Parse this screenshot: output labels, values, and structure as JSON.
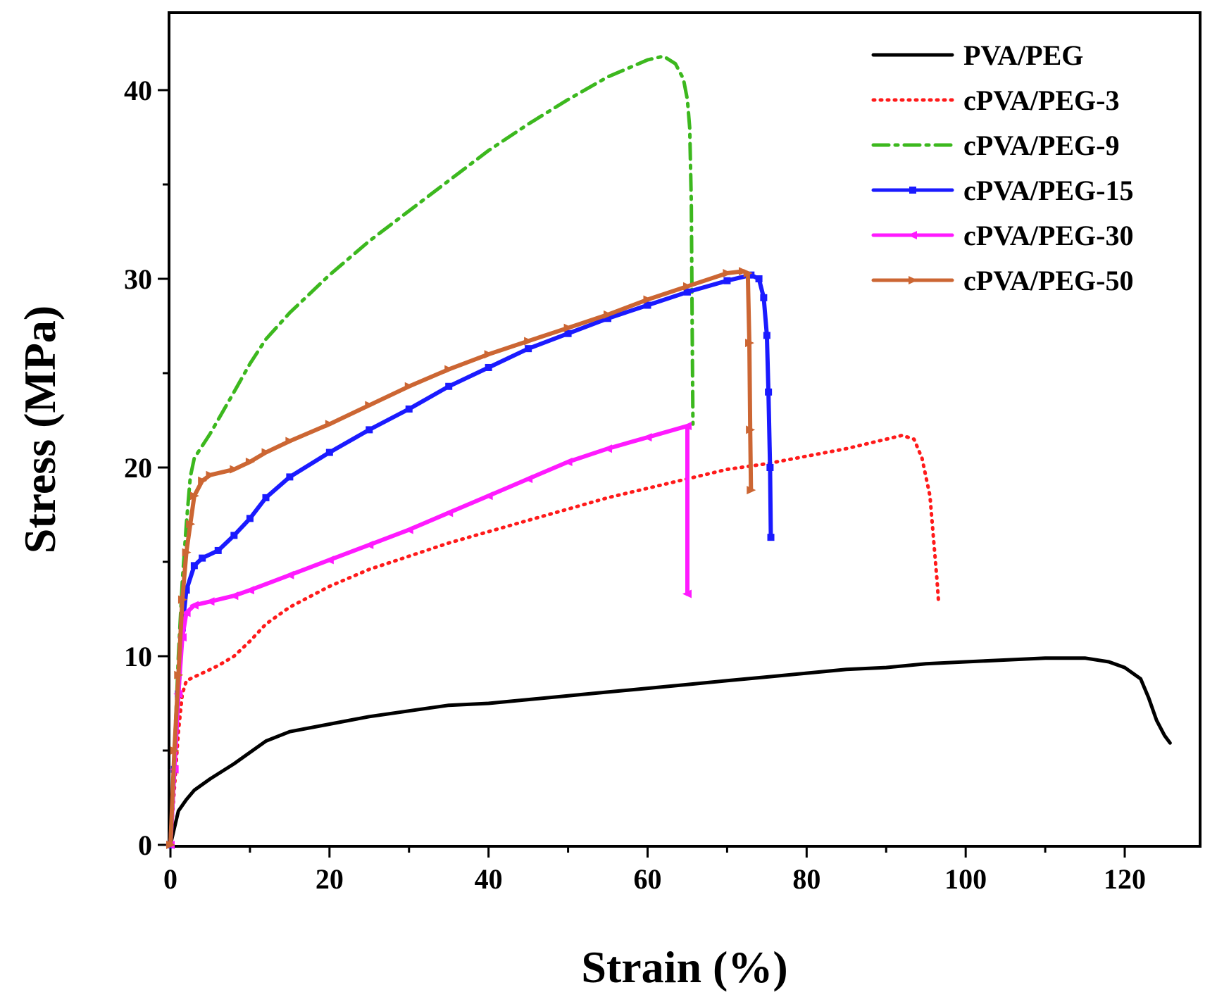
{
  "chart_data": {
    "type": "line",
    "xlabel": "Strain (%)",
    "ylabel": "Stress (MPa)",
    "xlim": [
      0,
      130
    ],
    "ylim": [
      0,
      44
    ],
    "xticks": [
      0,
      20,
      40,
      60,
      80,
      100,
      120
    ],
    "xtick_labels": [
      "0",
      "20",
      "40",
      "60",
      "80",
      "100",
      "120"
    ],
    "yticks": [
      0,
      10,
      20,
      30,
      40
    ],
    "ytick_labels": [
      "0",
      "10",
      "20",
      "30",
      "40"
    ],
    "grid": false,
    "legend_position": "top-right",
    "series": [
      {
        "name": "PVA/PEG",
        "color": "#000000",
        "style": "solid",
        "marker": "none",
        "points": [
          [
            0,
            0
          ],
          [
            0.5,
            0.9
          ],
          [
            1,
            1.8
          ],
          [
            2,
            2.4
          ],
          [
            3,
            2.9
          ],
          [
            5,
            3.5
          ],
          [
            8,
            4.3
          ],
          [
            10,
            4.9
          ],
          [
            12,
            5.5
          ],
          [
            15,
            6.0
          ],
          [
            20,
            6.4
          ],
          [
            25,
            6.8
          ],
          [
            30,
            7.1
          ],
          [
            35,
            7.4
          ],
          [
            40,
            7.5
          ],
          [
            45,
            7.7
          ],
          [
            50,
            7.9
          ],
          [
            55,
            8.1
          ],
          [
            60,
            8.3
          ],
          [
            65,
            8.5
          ],
          [
            70,
            8.7
          ],
          [
            75,
            8.9
          ],
          [
            80,
            9.1
          ],
          [
            85,
            9.3
          ],
          [
            90,
            9.4
          ],
          [
            95,
            9.6
          ],
          [
            100,
            9.7
          ],
          [
            105,
            9.8
          ],
          [
            110,
            9.9
          ],
          [
            115,
            9.9
          ],
          [
            118,
            9.7
          ],
          [
            120,
            9.4
          ],
          [
            122,
            8.8
          ],
          [
            123,
            7.8
          ],
          [
            124,
            6.6
          ],
          [
            125,
            5.8
          ],
          [
            125.7,
            5.4
          ]
        ]
      },
      {
        "name": "cPVA/PEG-3",
        "color": "#ff1a1a",
        "style": "dotted",
        "marker": "none",
        "points": [
          [
            0,
            0
          ],
          [
            0.5,
            3
          ],
          [
            1,
            6
          ],
          [
            1.5,
            8
          ],
          [
            2,
            8.7
          ],
          [
            4,
            9.1
          ],
          [
            6,
            9.5
          ],
          [
            8,
            10.0
          ],
          [
            10,
            10.8
          ],
          [
            12,
            11.7
          ],
          [
            15,
            12.6
          ],
          [
            20,
            13.7
          ],
          [
            25,
            14.6
          ],
          [
            30,
            15.3
          ],
          [
            35,
            16.0
          ],
          [
            40,
            16.6
          ],
          [
            45,
            17.2
          ],
          [
            50,
            17.8
          ],
          [
            55,
            18.4
          ],
          [
            60,
            18.9
          ],
          [
            65,
            19.4
          ],
          [
            70,
            19.9
          ],
          [
            75,
            20.2
          ],
          [
            80,
            20.6
          ],
          [
            85,
            21.0
          ],
          [
            90,
            21.5
          ],
          [
            92,
            21.7
          ],
          [
            93.5,
            21.5
          ],
          [
            94.5,
            20.5
          ],
          [
            95.5,
            18.5
          ],
          [
            96,
            16
          ],
          [
            96.4,
            14
          ],
          [
            96.6,
            12.8
          ]
        ]
      },
      {
        "name": "cPVA/PEG-9",
        "color": "#3cb81e",
        "style": "dashdot",
        "marker": "none",
        "points": [
          [
            0,
            0
          ],
          [
            0.5,
            5
          ],
          [
            1,
            10
          ],
          [
            1.5,
            14
          ],
          [
            2,
            17
          ],
          [
            2.5,
            19.5
          ],
          [
            3,
            20.5
          ],
          [
            5,
            21.8
          ],
          [
            8,
            24.0
          ],
          [
            10,
            25.5
          ],
          [
            12,
            26.8
          ],
          [
            15,
            28.2
          ],
          [
            20,
            30.2
          ],
          [
            25,
            32.0
          ],
          [
            30,
            33.6
          ],
          [
            35,
            35.2
          ],
          [
            40,
            36.8
          ],
          [
            45,
            38.2
          ],
          [
            50,
            39.5
          ],
          [
            55,
            40.7
          ],
          [
            60,
            41.6
          ],
          [
            62,
            41.8
          ],
          [
            63.5,
            41.4
          ],
          [
            64.5,
            40.6
          ],
          [
            65,
            39.5
          ],
          [
            65.3,
            38
          ],
          [
            65.5,
            34
          ],
          [
            65.6,
            28
          ],
          [
            65.7,
            22.3
          ]
        ]
      },
      {
        "name": "cPVA/PEG-15",
        "color": "#1a1aff",
        "style": "solid",
        "marker": "square",
        "points": [
          [
            0,
            0
          ],
          [
            0.5,
            4
          ],
          [
            1,
            8
          ],
          [
            1.5,
            11.5
          ],
          [
            2,
            13.5
          ],
          [
            3,
            14.8
          ],
          [
            4,
            15.2
          ],
          [
            6,
            15.6
          ],
          [
            8,
            16.4
          ],
          [
            10,
            17.3
          ],
          [
            12,
            18.4
          ],
          [
            15,
            19.5
          ],
          [
            20,
            20.8
          ],
          [
            25,
            22.0
          ],
          [
            30,
            23.1
          ],
          [
            35,
            24.3
          ],
          [
            40,
            25.3
          ],
          [
            45,
            26.3
          ],
          [
            50,
            27.1
          ],
          [
            55,
            27.9
          ],
          [
            60,
            28.6
          ],
          [
            65,
            29.3
          ],
          [
            70,
            29.9
          ],
          [
            73,
            30.2
          ],
          [
            74,
            30.0
          ],
          [
            74.6,
            29.0
          ],
          [
            75,
            27.0
          ],
          [
            75.2,
            24.0
          ],
          [
            75.4,
            20.0
          ],
          [
            75.5,
            16.3
          ]
        ]
      },
      {
        "name": "cPVA/PEG-30",
        "color": "#ff1aff",
        "style": "solid",
        "marker": "left-triangle",
        "points": [
          [
            0,
            0
          ],
          [
            0.5,
            4
          ],
          [
            1,
            8
          ],
          [
            1.5,
            11
          ],
          [
            2,
            12.3
          ],
          [
            3,
            12.7
          ],
          [
            5,
            12.9
          ],
          [
            8,
            13.2
          ],
          [
            10,
            13.5
          ],
          [
            15,
            14.3
          ],
          [
            20,
            15.1
          ],
          [
            25,
            15.9
          ],
          [
            30,
            16.7
          ],
          [
            35,
            17.6
          ],
          [
            40,
            18.5
          ],
          [
            45,
            19.4
          ],
          [
            50,
            20.3
          ],
          [
            55,
            21.0
          ],
          [
            60,
            21.6
          ],
          [
            65,
            22.2
          ],
          [
            65,
            13.3
          ]
        ]
      },
      {
        "name": "cPVA/PEG-50",
        "color": "#cc6633",
        "style": "solid",
        "marker": "right-triangle",
        "points": [
          [
            0,
            0
          ],
          [
            0.5,
            5
          ],
          [
            1,
            9
          ],
          [
            1.5,
            13
          ],
          [
            2,
            15.5
          ],
          [
            2.5,
            17
          ],
          [
            3,
            18.5
          ],
          [
            4,
            19.3
          ],
          [
            5,
            19.6
          ],
          [
            8,
            19.9
          ],
          [
            10,
            20.3
          ],
          [
            12,
            20.8
          ],
          [
            15,
            21.4
          ],
          [
            20,
            22.3
          ],
          [
            25,
            23.3
          ],
          [
            30,
            24.3
          ],
          [
            35,
            25.2
          ],
          [
            40,
            26.0
          ],
          [
            45,
            26.7
          ],
          [
            50,
            27.4
          ],
          [
            55,
            28.1
          ],
          [
            60,
            28.9
          ],
          [
            65,
            29.6
          ],
          [
            70,
            30.3
          ],
          [
            72,
            30.4
          ],
          [
            72.6,
            30.3
          ],
          [
            72.8,
            26.6
          ],
          [
            72.9,
            22
          ],
          [
            73,
            18.8
          ]
        ]
      }
    ]
  }
}
